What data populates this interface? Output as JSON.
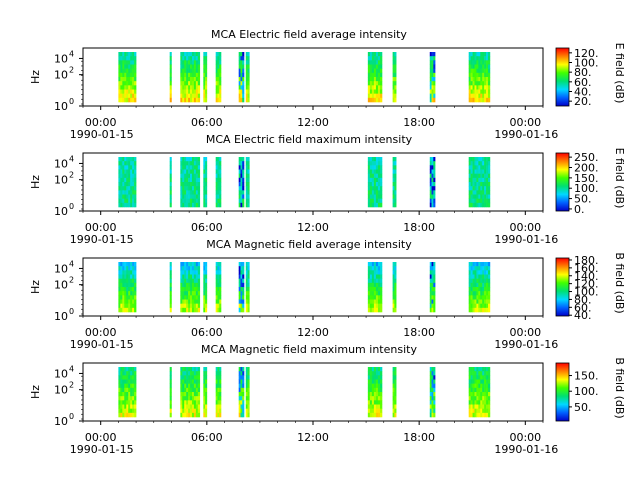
{
  "chart_data": [
    {
      "type": "heatmap",
      "title": "MCA  Electric field average intensity",
      "ylabel": "Hz",
      "colorbar_label": "E field (dB)",
      "colorbar_ticks": [
        "20.",
        "40.",
        "60.",
        "80.",
        "100.",
        "120."
      ],
      "colorbar_range": [
        10,
        130
      ],
      "yticks": [
        "10^0",
        "10^2",
        "10^4"
      ]
    },
    {
      "type": "heatmap",
      "title": "MCA  Electric field maximum intensity",
      "ylabel": "Hz",
      "colorbar_label": "E field (dB)",
      "colorbar_ticks": [
        "0.",
        "50.",
        "100.",
        "150.",
        "200.",
        "250."
      ],
      "colorbar_range": [
        -10,
        270
      ],
      "yticks": [
        "10^0",
        "10^2",
        "10^4"
      ]
    },
    {
      "type": "heatmap",
      "title": "MCA  Magnetic field average intensity",
      "ylabel": "Hz",
      "colorbar_label": "B field (dB)",
      "colorbar_ticks": [
        "40.",
        "60.",
        "80.",
        "100.",
        "120.",
        "140.",
        "160.",
        "180."
      ],
      "colorbar_range": [
        38,
        185
      ],
      "yticks": [
        "10^0",
        "10^2",
        "10^4"
      ]
    },
    {
      "type": "heatmap",
      "title": "MCA  Magnetic field maximum intensity",
      "ylabel": "Hz",
      "colorbar_label": "B field (dB)",
      "colorbar_ticks": [
        "50.",
        "100.",
        "150."
      ],
      "colorbar_range": [
        5,
        190
      ],
      "yticks": [
        "10^0",
        "10^2",
        "10^4"
      ]
    }
  ],
  "xaxis": {
    "ticks": [
      "00:00",
      "06:00",
      "12:00",
      "18:00",
      "00:00"
    ],
    "start_date": "1990-01-15",
    "end_date": "1990-01-16",
    "range_hours": [
      -1,
      25
    ]
  },
  "data_segments_hours": [
    [
      1.0,
      2.0
    ],
    [
      3.9,
      4.0
    ],
    [
      4.5,
      5.6
    ],
    [
      5.8,
      6.0
    ],
    [
      6.5,
      6.8
    ],
    [
      7.8,
      8.1
    ],
    [
      8.2,
      8.4
    ],
    [
      15.1,
      15.9
    ],
    [
      16.5,
      16.7
    ],
    [
      18.6,
      18.9
    ],
    [
      20.8,
      22.0
    ]
  ],
  "colors": {
    "colormap": [
      "#0000c8",
      "#0060ff",
      "#00d8ff",
      "#00e070",
      "#40ff00",
      "#ffff00",
      "#ff8000",
      "#ff0000"
    ]
  }
}
